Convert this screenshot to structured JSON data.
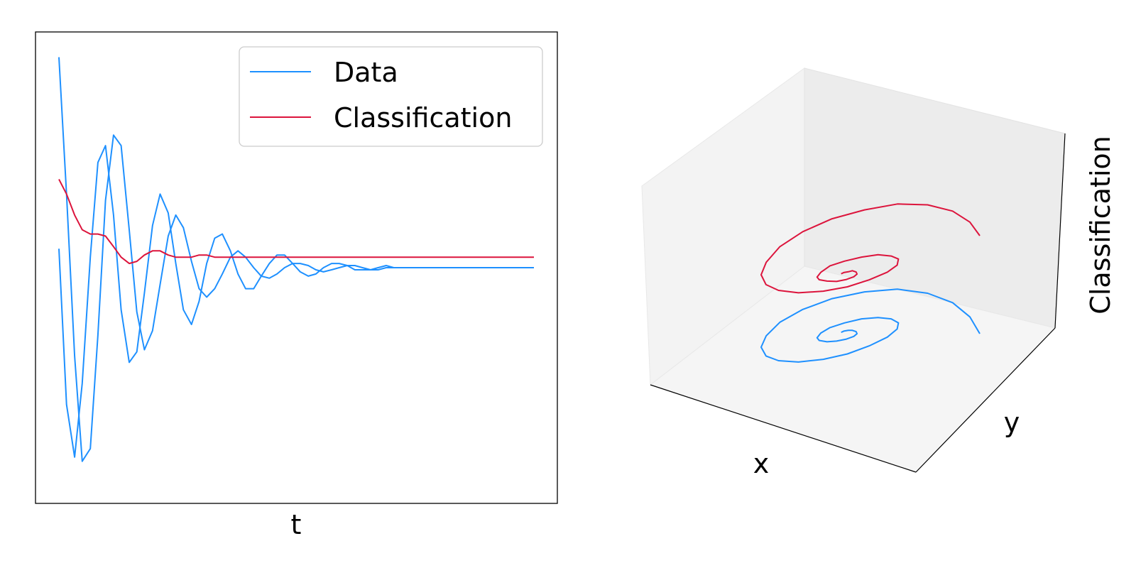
{
  "colors": {
    "data": "#1e90ff",
    "classification": "#dc143c"
  },
  "chart_data": [
    {
      "type": "line",
      "title": "",
      "xlabel": "t",
      "ylabel": "",
      "ticks": "none",
      "legend": {
        "placement": "top-right",
        "entries": [
          {
            "label": "Data",
            "color": "#1e90ff"
          },
          {
            "label": "Classification",
            "color": "#dc143c"
          }
        ]
      },
      "xlim": [
        0,
        10
      ],
      "ylim": [
        -1.12,
        1.12
      ],
      "series": [
        {
          "name": "Data",
          "x": [
            0,
            0.16,
            0.33,
            0.49,
            0.66,
            0.82,
            0.98,
            1.15,
            1.31,
            1.48,
            1.64,
            1.8,
            1.97,
            2.13,
            2.3,
            2.46,
            2.62,
            2.79,
            2.95,
            3.11,
            3.28,
            3.44,
            3.61,
            3.77,
            3.93,
            4.1,
            4.26,
            4.43,
            4.59,
            4.75,
            4.92,
            5.08,
            5.25,
            5.41,
            5.57,
            5.74,
            5.9,
            6.07,
            6.23,
            6.39,
            6.56,
            6.72,
            6.89,
            7.05,
            7.21,
            7.38,
            7.54,
            7.7,
            7.87,
            8.03,
            8.2,
            8.36,
            8.52,
            8.69,
            8.85,
            9.02,
            9.18,
            9.34,
            9.51,
            9.67,
            9.84,
            10
          ],
          "y": [
            1.0,
            0.35,
            -0.42,
            -0.92,
            -0.86,
            -0.32,
            0.32,
            0.63,
            0.58,
            0.18,
            -0.21,
            -0.39,
            -0.3,
            -0.08,
            0.15,
            0.25,
            0.19,
            0.03,
            -0.1,
            -0.14,
            -0.1,
            -0.03,
            0.05,
            0.08,
            0.05,
            0.0,
            -0.04,
            -0.05,
            -0.03,
            0.0,
            0.02,
            0.02,
            0.01,
            -0.01,
            -0.02,
            -0.01,
            0.0,
            0.01,
            0.01,
            0.0,
            -0.01,
            -0.01,
            0.0,
            0.0,
            0.0,
            0.0,
            0.0,
            0.0,
            0.0,
            0.0,
            0.0,
            0.0,
            0.0,
            0.0,
            0.0,
            0.0,
            0.0,
            0.0,
            0.0,
            0.0,
            0.0,
            0.0
          ]
        },
        {
          "name": "Data",
          "x": [
            0,
            0.16,
            0.33,
            0.49,
            0.66,
            0.82,
            0.98,
            1.15,
            1.31,
            1.48,
            1.64,
            1.8,
            1.97,
            2.13,
            2.3,
            2.46,
            2.62,
            2.79,
            2.95,
            3.11,
            3.28,
            3.44,
            3.61,
            3.77,
            3.93,
            4.1,
            4.26,
            4.43,
            4.59,
            4.75,
            4.92,
            5.08,
            5.25,
            5.41,
            5.57,
            5.74,
            5.9,
            6.07,
            6.23,
            6.39,
            6.56,
            6.72,
            6.89,
            7.05,
            7.21,
            7.38,
            7.54,
            7.7,
            7.87,
            8.03,
            8.2,
            8.36,
            8.52,
            8.69,
            8.85,
            9.02,
            9.18,
            9.34,
            9.51,
            9.67,
            9.84,
            10
          ],
          "y": [
            0.09,
            -0.65,
            -0.9,
            -0.55,
            0.05,
            0.5,
            0.58,
            0.25,
            -0.2,
            -0.45,
            -0.4,
            -0.12,
            0.2,
            0.35,
            0.26,
            0.02,
            -0.2,
            -0.27,
            -0.16,
            0.02,
            0.14,
            0.16,
            0.08,
            -0.03,
            -0.1,
            -0.1,
            -0.04,
            0.02,
            0.06,
            0.06,
            0.02,
            -0.02,
            -0.04,
            -0.03,
            0.0,
            0.02,
            0.02,
            0.01,
            -0.01,
            -0.01,
            -0.01,
            0.0,
            0.01,
            0.0,
            0.0,
            0.0,
            0.0,
            0.0,
            0.0,
            0.0,
            0.0,
            0.0,
            0.0,
            0.0,
            0.0,
            0.0,
            0.0,
            0.0,
            0.0,
            0.0,
            0.0,
            0.0
          ]
        },
        {
          "name": "Classification",
          "x": [
            0,
            0.16,
            0.33,
            0.49,
            0.66,
            0.82,
            0.98,
            1.15,
            1.31,
            1.48,
            1.64,
            1.8,
            1.97,
            2.13,
            2.3,
            2.46,
            2.62,
            2.79,
            2.95,
            3.11,
            3.28,
            3.44,
            3.61,
            3.77,
            3.93,
            4.1,
            4.26,
            4.43,
            4.59,
            4.75,
            4.92,
            5.08,
            5.25,
            5.41,
            5.57,
            5.74,
            5.9,
            6.07,
            6.23,
            6.39,
            6.56,
            6.72,
            6.89,
            7.05,
            7.21,
            7.38,
            7.54,
            7.7,
            7.87,
            8.03,
            8.2,
            8.36,
            8.52,
            8.69,
            8.85,
            9.02,
            9.18,
            9.34,
            9.51,
            9.67,
            9.84,
            10
          ],
          "y": [
            0.42,
            0.35,
            0.25,
            0.18,
            0.16,
            0.16,
            0.15,
            0.1,
            0.05,
            0.02,
            0.03,
            0.06,
            0.08,
            0.08,
            0.06,
            0.05,
            0.05,
            0.05,
            0.06,
            0.06,
            0.05,
            0.05,
            0.05,
            0.05,
            0.05,
            0.05,
            0.05,
            0.05,
            0.05,
            0.05,
            0.05,
            0.05,
            0.05,
            0.05,
            0.05,
            0.05,
            0.05,
            0.05,
            0.05,
            0.05,
            0.05,
            0.05,
            0.05,
            0.05,
            0.05,
            0.05,
            0.05,
            0.05,
            0.05,
            0.05,
            0.05,
            0.05,
            0.05,
            0.05,
            0.05,
            0.05,
            0.05,
            0.05,
            0.05,
            0.05,
            0.05,
            0.05
          ]
        }
      ]
    },
    {
      "type": "line",
      "projection": "3d",
      "title": "",
      "xlabel": "x",
      "ylabel": "y",
      "zlabel": "Classification",
      "ticks": "none",
      "grid": false,
      "xlim": [
        -1,
        1
      ],
      "ylim": [
        -1,
        1
      ],
      "zlim": [
        -1,
        1
      ],
      "series": [
        {
          "name": "Data",
          "x": [
            1.0,
            0.9,
            0.75,
            0.55,
            0.32,
            0.08,
            -0.15,
            -0.35,
            -0.5,
            -0.58,
            -0.6,
            -0.55,
            -0.45,
            -0.3,
            -0.12,
            0.05,
            0.2,
            0.32,
            0.38,
            0.38,
            0.32,
            0.22,
            0.1,
            -0.02,
            -0.12,
            -0.18,
            -0.2,
            -0.18,
            -0.12,
            -0.05,
            0.02,
            0.07,
            0.09,
            0.08,
            0.05,
            0.02,
            -0.01,
            -0.03
          ],
          "y": [
            0.0,
            0.25,
            0.46,
            0.6,
            0.66,
            0.62,
            0.52,
            0.36,
            0.17,
            -0.03,
            -0.2,
            -0.33,
            -0.4,
            -0.42,
            -0.38,
            -0.3,
            -0.18,
            -0.05,
            0.07,
            0.16,
            0.22,
            0.24,
            0.22,
            0.16,
            0.09,
            0.01,
            -0.06,
            -0.1,
            -0.12,
            -0.11,
            -0.08,
            -0.04,
            0.0,
            0.03,
            0.05,
            0.05,
            0.04,
            0.02
          ],
          "z": [
            -0.5,
            -0.5,
            -0.5,
            -0.5,
            -0.5,
            -0.5,
            -0.5,
            -0.5,
            -0.5,
            -0.5,
            -0.5,
            -0.5,
            -0.5,
            -0.5,
            -0.5,
            -0.5,
            -0.5,
            -0.5,
            -0.5,
            -0.5,
            -0.5,
            -0.5,
            -0.5,
            -0.5,
            -0.5,
            -0.5,
            -0.5,
            -0.5,
            -0.5,
            -0.5,
            -0.5,
            -0.5,
            -0.5,
            -0.5,
            -0.5,
            -0.5,
            -0.5,
            -0.5
          ]
        },
        {
          "name": "Classification",
          "x": [
            1.0,
            0.9,
            0.75,
            0.55,
            0.32,
            0.08,
            -0.15,
            -0.35,
            -0.5,
            -0.58,
            -0.6,
            -0.55,
            -0.45,
            -0.3,
            -0.12,
            0.05,
            0.2,
            0.32,
            0.38,
            0.38,
            0.32,
            0.22,
            0.1,
            -0.02,
            -0.12,
            -0.18,
            -0.2,
            -0.18,
            -0.12,
            -0.05,
            0.02,
            0.07,
            0.09,
            0.08,
            0.05,
            0.02,
            -0.01,
            -0.03
          ],
          "y": [
            0.0,
            0.25,
            0.46,
            0.6,
            0.66,
            0.62,
            0.52,
            0.36,
            0.17,
            -0.03,
            -0.2,
            -0.33,
            -0.4,
            -0.42,
            -0.38,
            -0.3,
            -0.18,
            -0.05,
            0.07,
            0.16,
            0.22,
            0.24,
            0.22,
            0.16,
            0.09,
            0.01,
            -0.06,
            -0.1,
            -0.12,
            -0.11,
            -0.08,
            -0.04,
            0.0,
            0.03,
            0.05,
            0.05,
            0.04,
            0.02
          ],
          "z": [
            0.42,
            0.39,
            0.36,
            0.33,
            0.3,
            0.27,
            0.25,
            0.23,
            0.21,
            0.19,
            0.18,
            0.17,
            0.16,
            0.15,
            0.14,
            0.13,
            0.12,
            0.11,
            0.1,
            0.1,
            0.09,
            0.09,
            0.08,
            0.08,
            0.08,
            0.07,
            0.07,
            0.07,
            0.07,
            0.06,
            0.06,
            0.06,
            0.06,
            0.06,
            0.06,
            0.05,
            0.05,
            0.05
          ]
        }
      ]
    }
  ]
}
